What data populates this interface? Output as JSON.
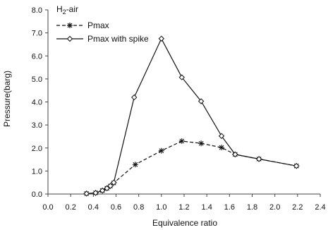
{
  "chart_data": {
    "type": "line",
    "title": "",
    "xlabel": "Equivalence ratio",
    "ylabel": "Pressure(barg)",
    "xlim": [
      0.0,
      2.4
    ],
    "ylim": [
      0.0,
      8.0
    ],
    "xticks": [
      "0.0",
      "0.2",
      "0.4",
      "0.6",
      "0.8",
      "1.0",
      "1.2",
      "1.4",
      "1.6",
      "1.8",
      "2.0",
      "2.2",
      "2.4"
    ],
    "yticks": [
      "0.0",
      "1.0",
      "2.0",
      "3.0",
      "4.0",
      "5.0",
      "6.0",
      "7.0",
      "8.0"
    ],
    "grid": false,
    "legend": {
      "position": "top-left",
      "heading_main": "H",
      "heading_sub": "2",
      "heading_rest": "-air"
    },
    "series": [
      {
        "name": "Pmax",
        "marker": "asterisk",
        "line": "dashed",
        "color": "#111111",
        "points": [
          [
            0.34,
            0.02
          ],
          [
            0.42,
            0.05
          ],
          [
            0.48,
            0.15
          ],
          [
            0.52,
            0.25
          ],
          [
            0.55,
            0.35
          ],
          [
            0.58,
            0.48
          ],
          [
            0.77,
            1.28
          ],
          [
            1.0,
            1.88
          ],
          [
            1.18,
            2.3
          ],
          [
            1.35,
            2.2
          ],
          [
            1.53,
            2.02
          ],
          [
            1.65,
            1.72
          ],
          [
            1.86,
            1.52
          ],
          [
            2.19,
            1.22
          ]
        ]
      },
      {
        "name": "Pmax with spike",
        "marker": "diamond",
        "line": "solid",
        "color": "#111111",
        "points": [
          [
            0.34,
            0.02
          ],
          [
            0.42,
            0.05
          ],
          [
            0.48,
            0.15
          ],
          [
            0.52,
            0.25
          ],
          [
            0.55,
            0.35
          ],
          [
            0.58,
            0.5
          ],
          [
            0.76,
            4.2
          ],
          [
            1.0,
            6.75
          ],
          [
            1.18,
            5.07
          ],
          [
            1.35,
            4.03
          ],
          [
            1.53,
            2.52
          ],
          [
            1.65,
            1.72
          ],
          [
            1.86,
            1.52
          ],
          [
            2.19,
            1.22
          ]
        ]
      }
    ]
  }
}
